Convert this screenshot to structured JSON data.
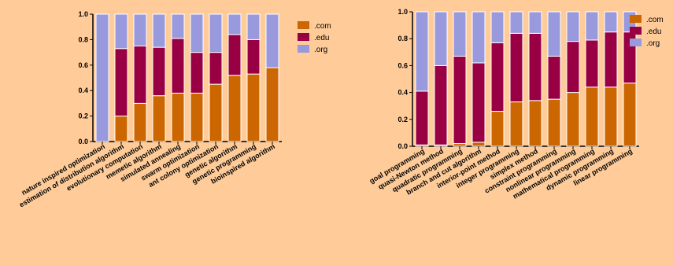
{
  "colors": {
    "com": "#CC6600",
    "edu": "#990044",
    "org": "#9999DD",
    "background": "#FFCC99"
  },
  "chart_data": [
    {
      "type": "bar",
      "stacked": true,
      "title": "",
      "xlabel": "",
      "ylabel": "",
      "ylim": [
        0,
        1
      ],
      "yticks": [
        "0.0",
        "0.2",
        "0.4",
        "0.6",
        "0.8",
        "1.0"
      ],
      "legend_position": "top-right",
      "categories": [
        "nature inspired optimization",
        "estimation of distribution algorithm",
        "evolutionary computation",
        "memetic algorithm",
        "simulated annealing",
        "swarm optimization",
        "ant colony optimization",
        "genetic algorithm",
        "genetic programming",
        "bioinspired algorithm"
      ],
      "series": [
        {
          "name": ".com",
          "values": [
            0.0,
            0.2,
            0.3,
            0.36,
            0.38,
            0.38,
            0.45,
            0.52,
            0.53,
            0.58
          ]
        },
        {
          "name": ".edu",
          "values": [
            0.0,
            0.53,
            0.45,
            0.38,
            0.43,
            0.32,
            0.25,
            0.32,
            0.27,
            0.0
          ]
        },
        {
          "name": ".org",
          "values": [
            1.0,
            0.27,
            0.25,
            0.26,
            0.19,
            0.3,
            0.3,
            0.16,
            0.2,
            0.42
          ]
        }
      ]
    },
    {
      "type": "bar",
      "stacked": true,
      "title": "",
      "xlabel": "",
      "ylabel": "",
      "ylim": [
        0,
        1
      ],
      "yticks": [
        "0.0",
        "0.2",
        "0.4",
        "0.6",
        "0.8",
        "1.0"
      ],
      "legend_position": "top-right",
      "categories": [
        "goal programming",
        "quasi-Newton method",
        "quadratic programming",
        "branch and cut algorithm",
        "interior-point method",
        "integer programming",
        "simplex method",
        "constraint programming",
        "nonlinear programming",
        "mathematical programming",
        "dynamic programming",
        "linear programming"
      ],
      "series": [
        {
          "name": ".com",
          "values": [
            0.01,
            0.01,
            0.02,
            0.03,
            0.26,
            0.33,
            0.34,
            0.35,
            0.4,
            0.44,
            0.44,
            0.47
          ]
        },
        {
          "name": ".edu",
          "values": [
            0.4,
            0.59,
            0.65,
            0.59,
            0.51,
            0.51,
            0.5,
            0.32,
            0.38,
            0.35,
            0.41,
            0.38
          ]
        },
        {
          "name": ".org",
          "values": [
            0.59,
            0.4,
            0.33,
            0.38,
            0.23,
            0.16,
            0.16,
            0.33,
            0.22,
            0.21,
            0.15,
            0.15
          ]
        }
      ]
    }
  ]
}
